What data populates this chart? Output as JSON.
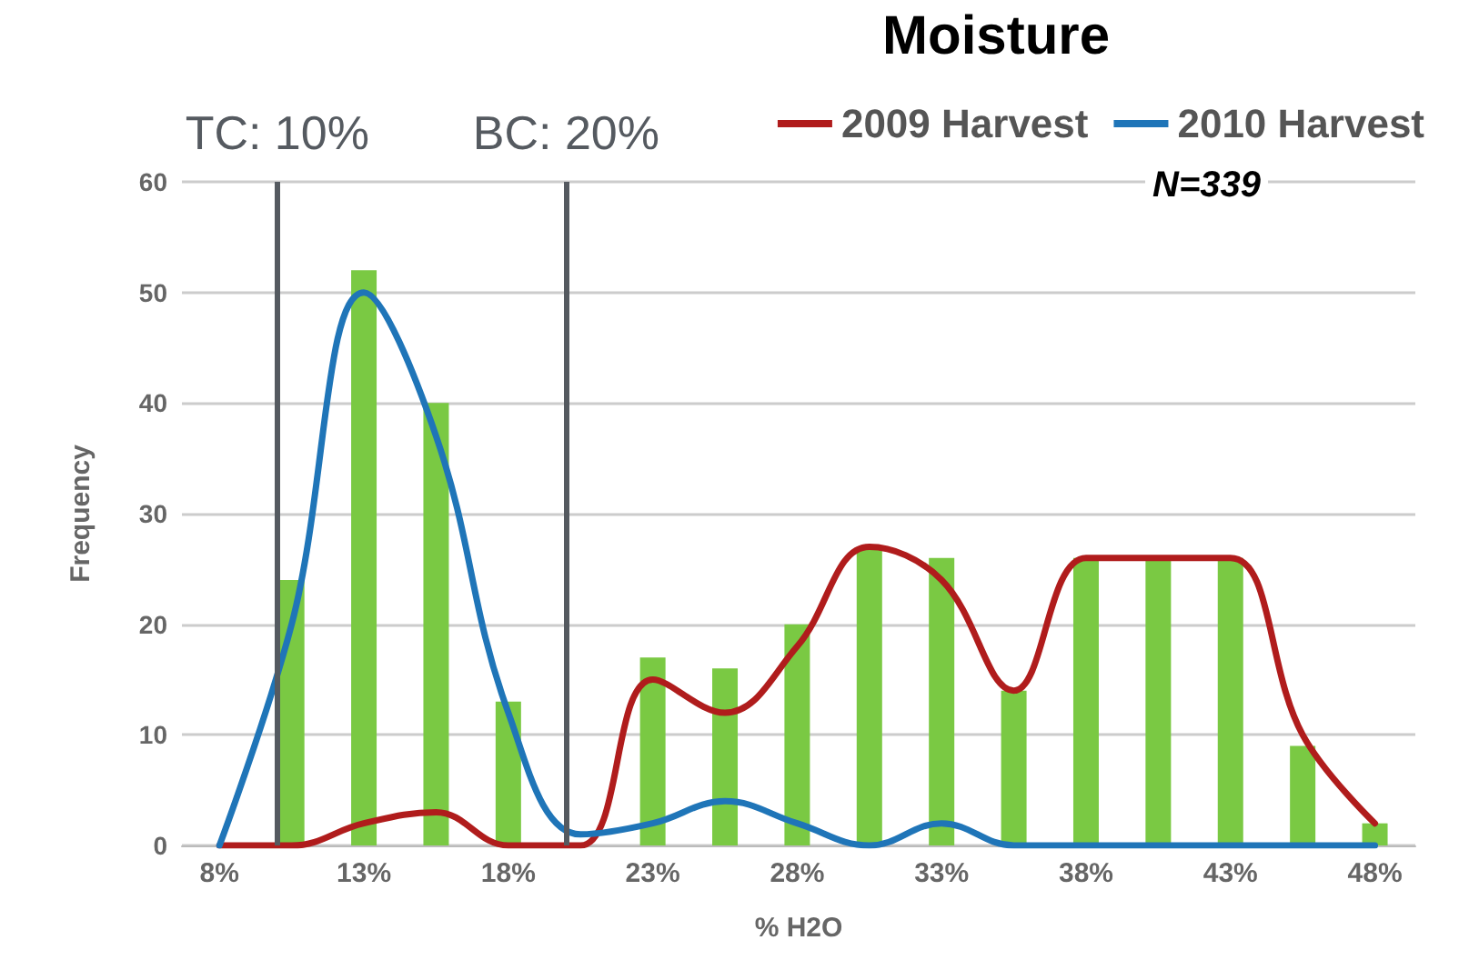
{
  "chart_data": {
    "type": "bar",
    "title": "Moisture",
    "xlabel": "% H2O",
    "ylabel": "Frequency",
    "x": [
      8,
      10.5,
      13,
      15.5,
      18,
      20.5,
      23,
      25.5,
      28,
      30.5,
      33,
      35.5,
      38,
      40.5,
      43,
      45.5,
      48
    ],
    "xlim": [
      6.7,
      49.4
    ],
    "xticks": [
      {
        "value": 8,
        "label": "8%"
      },
      {
        "value": 13,
        "label": "13%"
      },
      {
        "value": 18,
        "label": "18%"
      },
      {
        "value": 23,
        "label": "23%"
      },
      {
        "value": 28,
        "label": "28%"
      },
      {
        "value": 33,
        "label": "33%"
      },
      {
        "value": 38,
        "label": "38%"
      },
      {
        "value": 43,
        "label": "43%"
      },
      {
        "value": 48,
        "label": "48%"
      }
    ],
    "ylim": [
      0,
      60
    ],
    "yticks": [
      0,
      10,
      20,
      30,
      40,
      50,
      60
    ],
    "grid": "y",
    "legend": "top right",
    "marker": "none",
    "series": [
      {
        "color": "#7ac943",
        "values": [
          null,
          24,
          52,
          40,
          13,
          null,
          17,
          16,
          20,
          27,
          26,
          14,
          26,
          26,
          26,
          9,
          2
        ]
      },
      {
        "type": "line",
        "name": "2009 Harvest",
        "color": "#b01c1c",
        "values": [
          0,
          0,
          2,
          3,
          0,
          0,
          15,
          12,
          18,
          27,
          24,
          14,
          26,
          26,
          26,
          10,
          2
        ]
      },
      {
        "type": "line",
        "name": "2010 Harvest",
        "color": "#1f75b8",
        "values": [
          0,
          20,
          50,
          37,
          12,
          1,
          2,
          4,
          2,
          0,
          2,
          0,
          0,
          0,
          0,
          0,
          0
        ]
      }
    ],
    "ref_lines": [
      {
        "axis": "x",
        "value": 10,
        "label": "TC: 10%",
        "color": "#555a60"
      },
      {
        "axis": "x",
        "value": 20,
        "label": "BC: 20%",
        "color": "#555a60"
      }
    ],
    "annotations": [
      "N=339"
    ]
  }
}
